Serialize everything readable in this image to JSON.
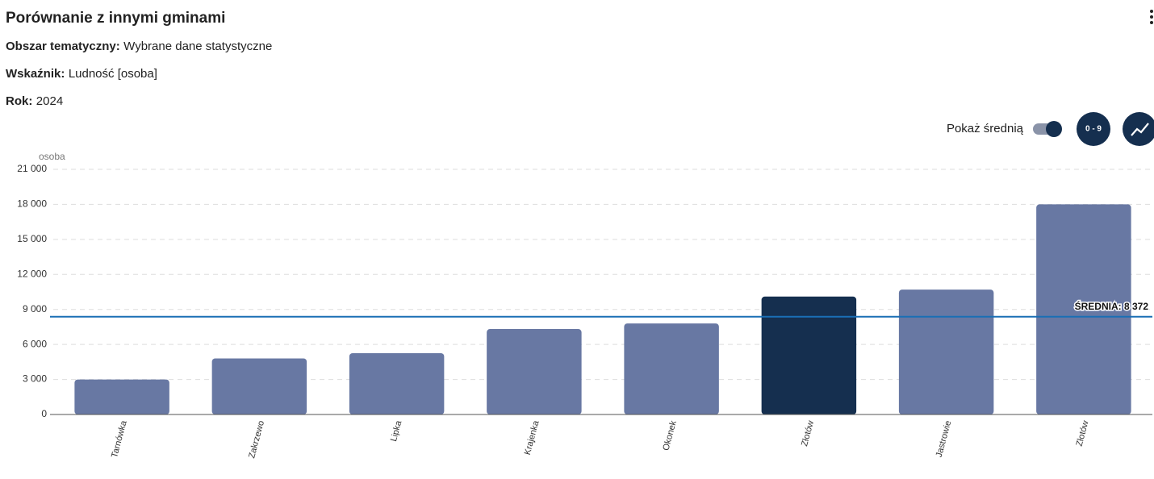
{
  "header": {
    "title": "Porównanie z innymi gminami",
    "fields": [
      {
        "label": "Obszar tematyczny:",
        "value": "Wybrane dane statystyczne"
      },
      {
        "label": "Wskaźnik:",
        "value": "Ludność [osoba]"
      },
      {
        "label": "Rok:",
        "value": "2024"
      }
    ]
  },
  "controls": {
    "show_average": "Pokaż średnią",
    "range_button": "0 - 9"
  },
  "chart_data": {
    "type": "bar",
    "y_label": "osoba",
    "categories": [
      "Tarnówka",
      "Zakrzewo",
      "Lipka",
      "Krajenka",
      "Okonek",
      "Złotów",
      "Jastrowie",
      "Złotów"
    ],
    "values": [
      3000,
      4800,
      5250,
      7320,
      7800,
      10100,
      10700,
      18000
    ],
    "colors": [
      "#6878a3",
      "#6878a3",
      "#6878a3",
      "#6878a3",
      "#6878a3",
      "#152f4f",
      "#6878a3",
      "#6878a3"
    ],
    "ylim": [
      0,
      21000
    ],
    "yticks": [
      0,
      {
        "value": 3000,
        "label": "3 000"
      },
      {
        "value": 6000,
        "label": "6 000"
      },
      {
        "value": 9000,
        "label": "9 000"
      },
      {
        "value": 12000,
        "label": "12 000"
      },
      {
        "value": 15000,
        "label": "15 000"
      },
      {
        "value": 18000,
        "label": "18 000"
      },
      {
        "value": 21000,
        "label": "21 000"
      }
    ],
    "grid": true,
    "average": 8372,
    "average_label": "ŚREDNIA: 8 372",
    "average_color": "#1a6fb5"
  }
}
